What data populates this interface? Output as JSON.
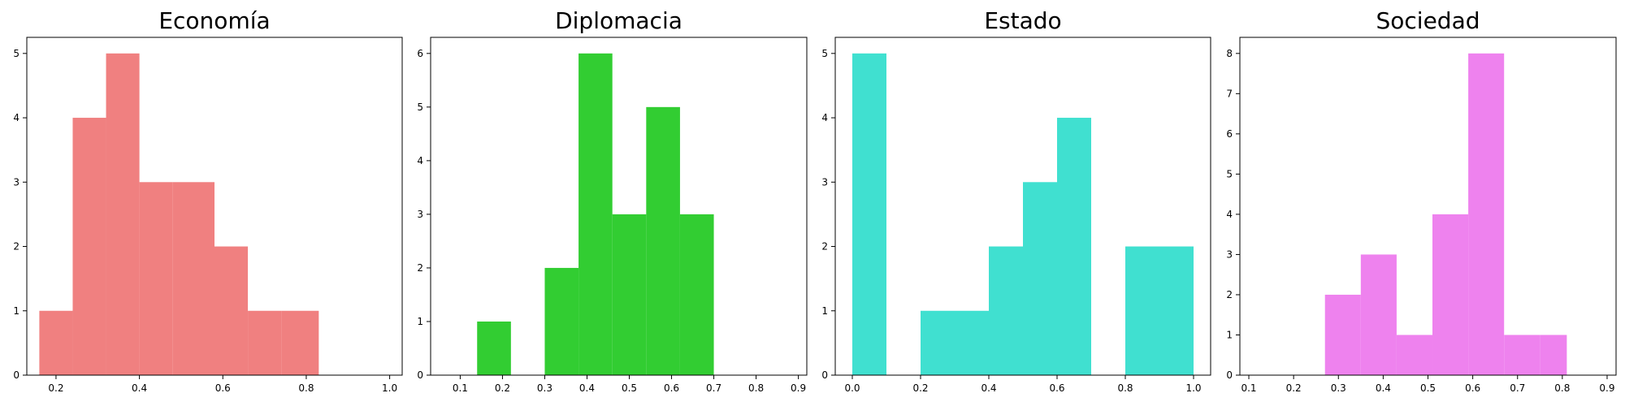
{
  "chart_data": [
    {
      "type": "bar",
      "title": "Economía",
      "color": "#f08080",
      "xlim": [
        0.13,
        1.03
      ],
      "ylim": [
        0,
        5.25
      ],
      "xticks": [
        0.2,
        0.4,
        0.6,
        0.8,
        1.0
      ],
      "xtick_labels": [
        "0.2",
        "0.4",
        "0.6",
        "0.8",
        "1.0"
      ],
      "yticks": [
        0,
        1,
        2,
        3,
        4,
        5
      ],
      "bins": [
        {
          "start": 0.16,
          "end": 0.24,
          "count": 1
        },
        {
          "start": 0.24,
          "end": 0.32,
          "count": 4
        },
        {
          "start": 0.32,
          "end": 0.4,
          "count": 5
        },
        {
          "start": 0.4,
          "end": 0.48,
          "count": 3
        },
        {
          "start": 0.48,
          "end": 0.58,
          "count": 3
        },
        {
          "start": 0.58,
          "end": 0.66,
          "count": 2
        },
        {
          "start": 0.66,
          "end": 0.74,
          "count": 1
        },
        {
          "start": 0.74,
          "end": 0.83,
          "count": 1
        }
      ]
    },
    {
      "type": "bar",
      "title": "Diplomacia",
      "color": "#32cd32",
      "xlim": [
        0.03,
        0.92
      ],
      "ylim": [
        0,
        6.3
      ],
      "xticks": [
        0.1,
        0.2,
        0.3,
        0.4,
        0.5,
        0.6,
        0.7,
        0.8,
        0.9
      ],
      "xtick_labels": [
        "0.1",
        "0.2",
        "0.3",
        "0.4",
        "0.5",
        "0.6",
        "0.7",
        "0.8",
        "0.9"
      ],
      "yticks": [
        0,
        1,
        2,
        3,
        4,
        5,
        6
      ],
      "bins": [
        {
          "start": 0.14,
          "end": 0.22,
          "count": 1
        },
        {
          "start": 0.3,
          "end": 0.38,
          "count": 2
        },
        {
          "start": 0.38,
          "end": 0.46,
          "count": 6
        },
        {
          "start": 0.46,
          "end": 0.54,
          "count": 3
        },
        {
          "start": 0.54,
          "end": 0.62,
          "count": 5
        },
        {
          "start": 0.62,
          "end": 0.7,
          "count": 3
        }
      ]
    },
    {
      "type": "bar",
      "title": "Estado",
      "color": "#40e0d0",
      "xlim": [
        -0.05,
        1.05
      ],
      "ylim": [
        0,
        5.25
      ],
      "xticks": [
        0.0,
        0.2,
        0.4,
        0.6,
        0.8,
        1.0
      ],
      "xtick_labels": [
        "0.0",
        "0.2",
        "0.4",
        "0.6",
        "0.8",
        "1.0"
      ],
      "yticks": [
        0,
        1,
        2,
        3,
        4,
        5
      ],
      "bins": [
        {
          "start": 0.0,
          "end": 0.1,
          "count": 5
        },
        {
          "start": 0.2,
          "end": 0.3,
          "count": 1
        },
        {
          "start": 0.3,
          "end": 0.4,
          "count": 1
        },
        {
          "start": 0.4,
          "end": 0.5,
          "count": 2
        },
        {
          "start": 0.5,
          "end": 0.6,
          "count": 3
        },
        {
          "start": 0.6,
          "end": 0.7,
          "count": 4
        },
        {
          "start": 0.8,
          "end": 0.9,
          "count": 2
        },
        {
          "start": 0.9,
          "end": 1.0,
          "count": 2
        }
      ]
    },
    {
      "type": "bar",
      "title": "Sociedad",
      "color": "#ee82ee",
      "xlim": [
        0.08,
        0.92
      ],
      "ylim": [
        0,
        8.4
      ],
      "xticks": [
        0.1,
        0.2,
        0.3,
        0.4,
        0.5,
        0.6,
        0.7,
        0.8,
        0.9
      ],
      "xtick_labels": [
        "0.1",
        "0.2",
        "0.3",
        "0.4",
        "0.5",
        "0.6",
        "0.7",
        "0.8",
        "0.9"
      ],
      "yticks": [
        0,
        1,
        2,
        3,
        4,
        5,
        6,
        7,
        8
      ],
      "bins": [
        {
          "start": 0.27,
          "end": 0.35,
          "count": 2
        },
        {
          "start": 0.35,
          "end": 0.43,
          "count": 3
        },
        {
          "start": 0.43,
          "end": 0.51,
          "count": 1
        },
        {
          "start": 0.51,
          "end": 0.59,
          "count": 4
        },
        {
          "start": 0.59,
          "end": 0.67,
          "count": 8
        },
        {
          "start": 0.67,
          "end": 0.75,
          "count": 1
        },
        {
          "start": 0.75,
          "end": 0.81,
          "count": 1
        }
      ]
    }
  ]
}
